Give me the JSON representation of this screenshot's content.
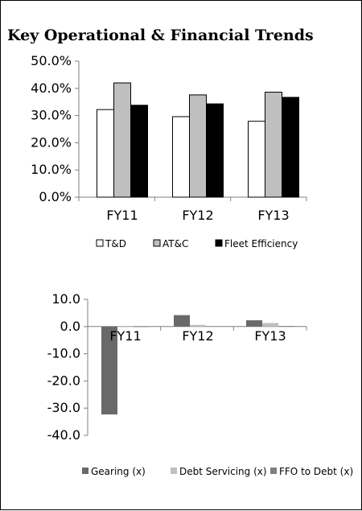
{
  "title": "Key Operational & Financial Trends",
  "chart_data": [
    {
      "type": "bar",
      "categories": [
        "FY11",
        "FY12",
        "FY13"
      ],
      "series": [
        {
          "name": "T&D",
          "values": [
            32.2,
            29.6,
            27.9
          ],
          "color": "#ffffff"
        },
        {
          "name": "AT&C",
          "values": [
            42.0,
            37.6,
            38.6
          ],
          "color": "#bfbfbf"
        },
        {
          "name": "Fleet Efficiency",
          "values": [
            33.8,
            34.3,
            36.7
          ],
          "color": "#000000"
        }
      ],
      "ylim": [
        0,
        50
      ],
      "yticks": [
        "0.0%",
        "10.0%",
        "20.0%",
        "30.0%",
        "40.0%",
        "50.0%"
      ],
      "legend_position": "bottom",
      "grid": false
    },
    {
      "type": "bar",
      "categories": [
        "FY11",
        "FY12",
        "FY13"
      ],
      "series": [
        {
          "name": "Gearing (x)",
          "values": [
            -32.3,
            4.2,
            2.3
          ],
          "color": "#696969"
        },
        {
          "name": "Debt Servicing (x)",
          "values": [
            0.2,
            0.6,
            1.3
          ],
          "color": "#bfbfbf"
        },
        {
          "name": "FFO to Debt (x)",
          "values": [
            0.0,
            0.1,
            0.2
          ],
          "color": "#7f7f7f"
        }
      ],
      "ylim": [
        -40,
        10
      ],
      "yticks": [
        "10.0",
        "0.0",
        "-10.0",
        "-20.0",
        "-30.0",
        "-40.0"
      ],
      "legend_position": "bottom",
      "grid": false
    }
  ]
}
